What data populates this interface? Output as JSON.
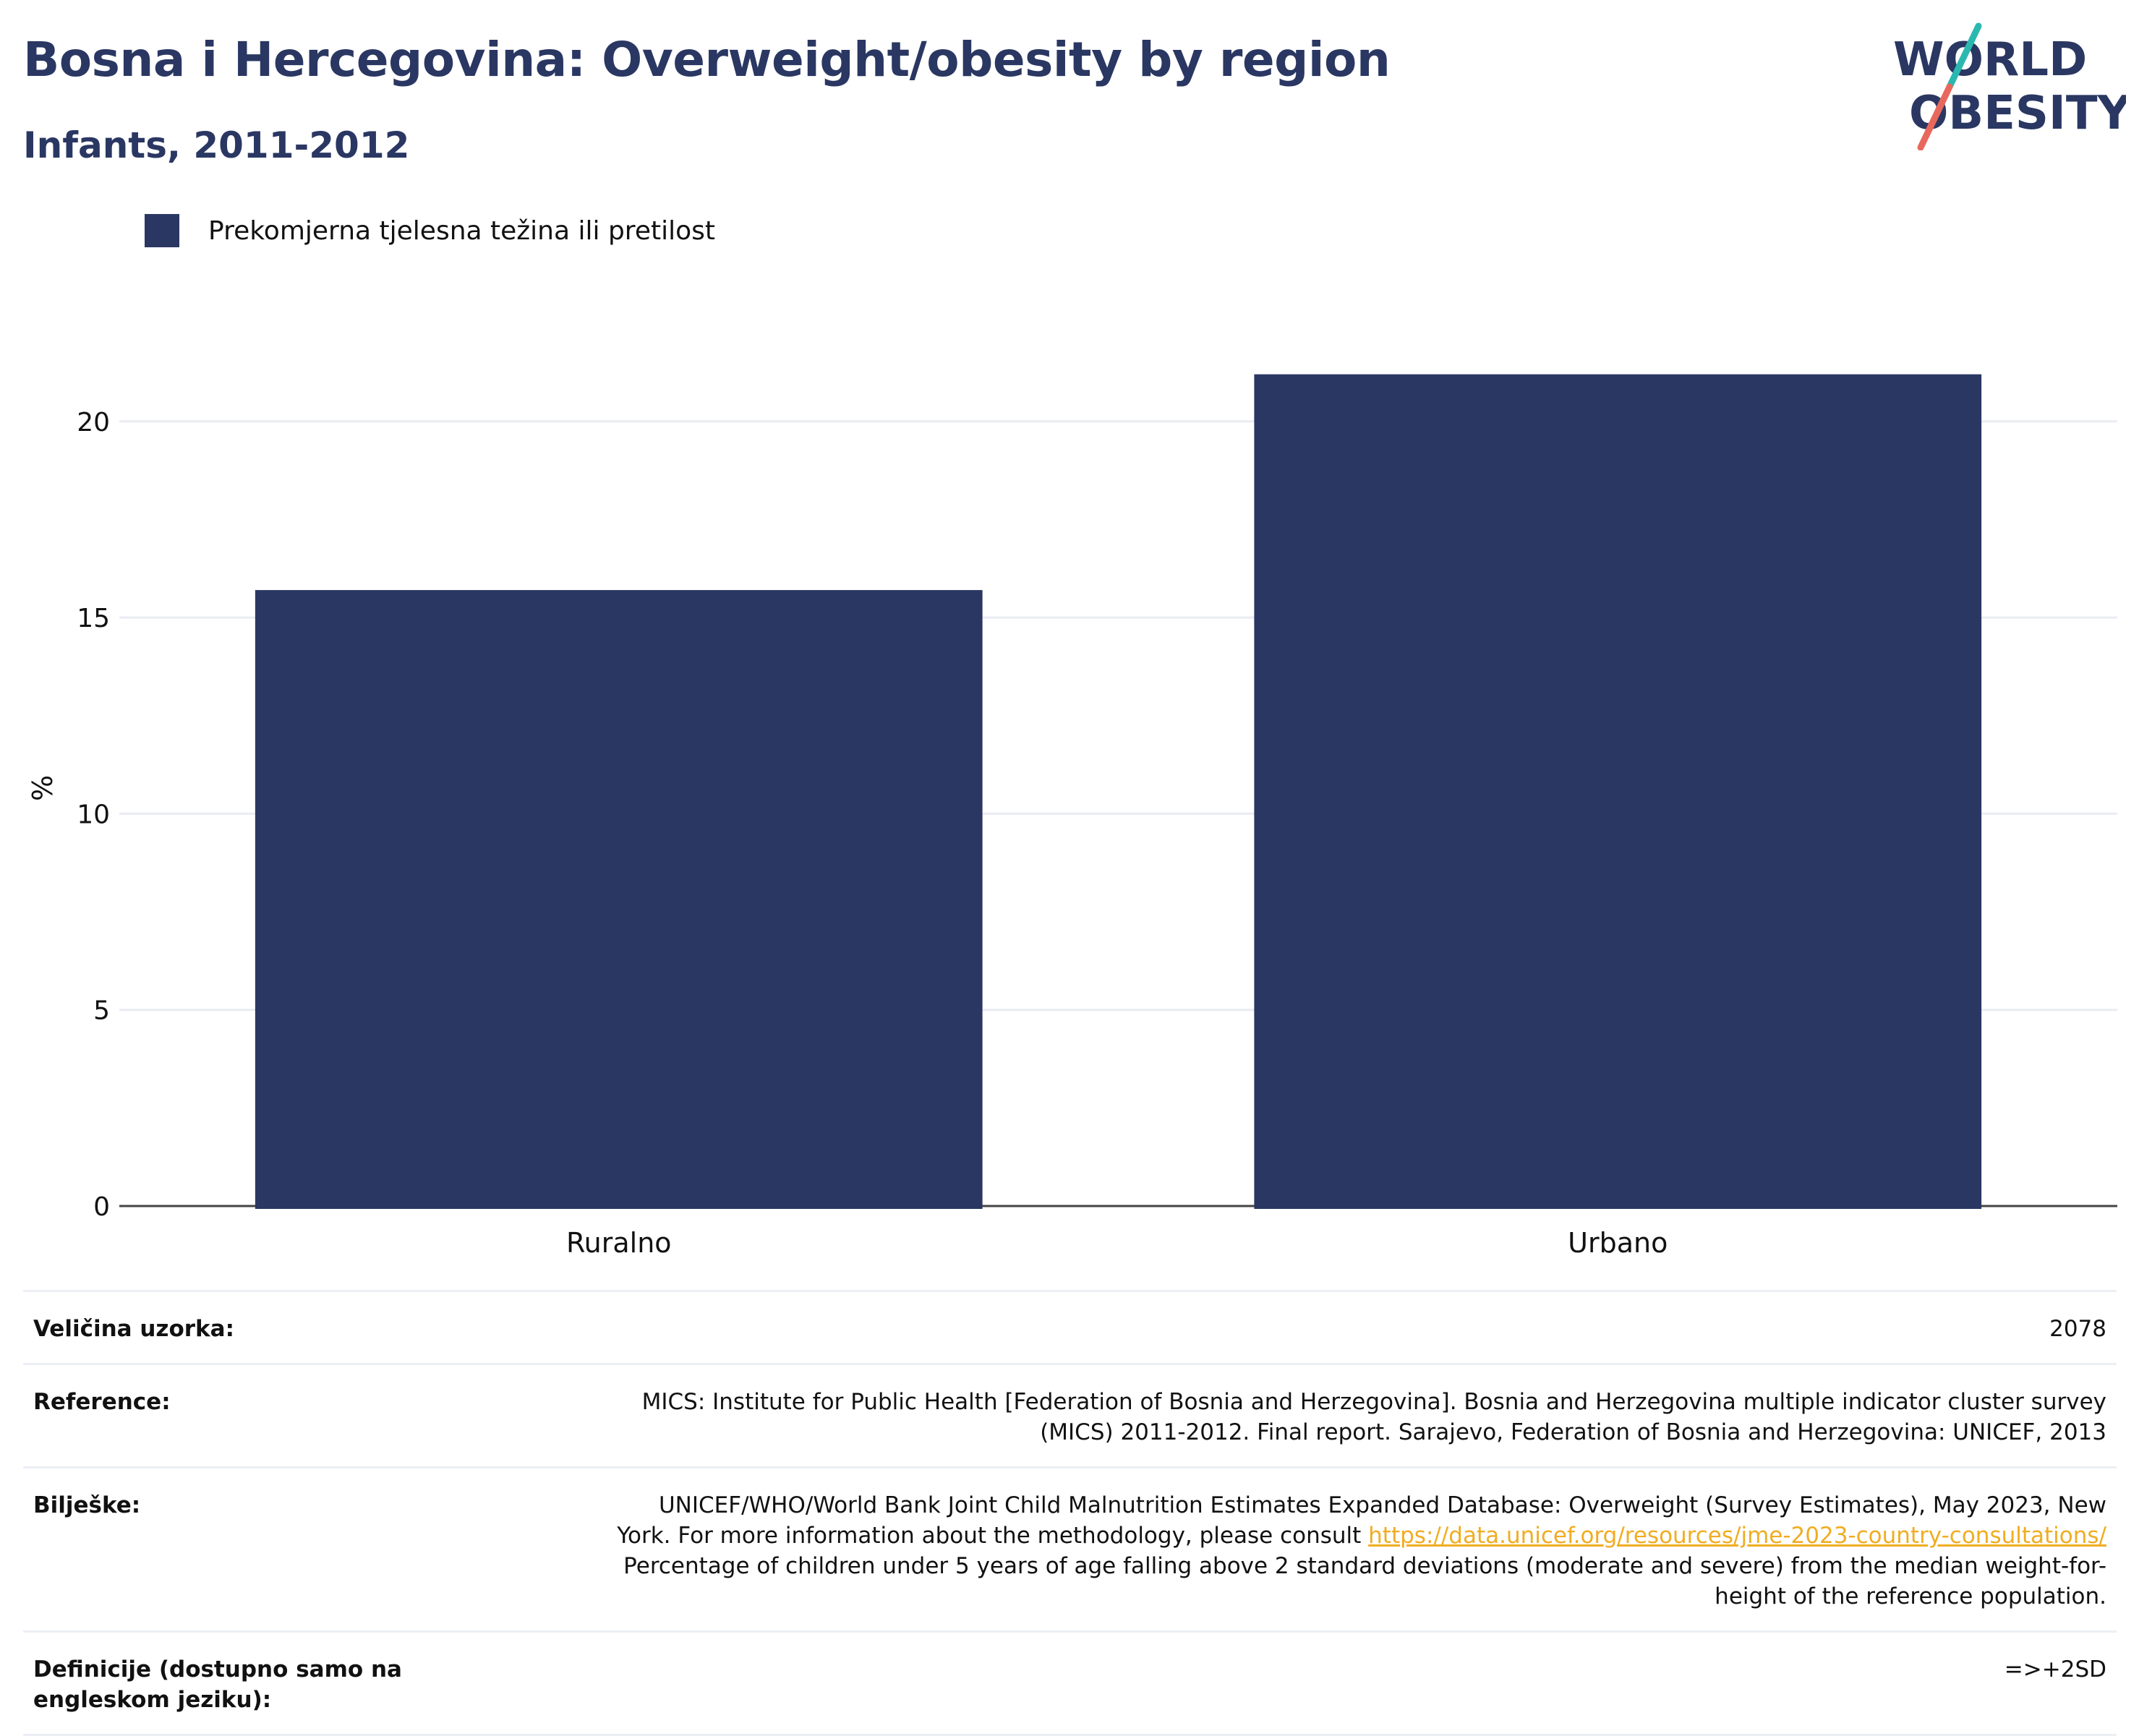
{
  "header": {
    "title": "Bosna i Hercegovina: Overweight/obesity by region",
    "subtitle": "Infants, 2011-2012",
    "logo_line1": "WORLD",
    "logo_line2": "OBESITY"
  },
  "colors": {
    "bar": "#2a3762",
    "title": "#2a3762",
    "link": "#f0ad22",
    "logo_slash_top": "#2bb8b0",
    "logo_slash_bottom": "#e8685d"
  },
  "chart_data": {
    "type": "bar",
    "categories": [
      "Ruralno",
      "Urbano"
    ],
    "series": [
      {
        "name": "Prekomjerna tjelesna težina ili pretilost",
        "values": [
          15.7,
          21.2
        ]
      }
    ],
    "ylabel": "%",
    "xlabel": "",
    "ylim": [
      0,
      23
    ],
    "yticks": [
      0,
      5,
      10,
      15,
      20
    ],
    "grid": true,
    "legend": "top-left"
  },
  "info": {
    "sample_label": "Veličina uzorka:",
    "sample_value": "2078",
    "reference_label": "Reference:",
    "reference_line1": "MICS: Institute for Public Health [Federation of Bosnia and Herzegovina]. Bosnia and Herzegovina multiple indicator cluster survey",
    "reference_line2": "(MICS) 2011-2012. Final report. Sarajevo, Federation of Bosnia and Herzegovina: UNICEF, 2013",
    "notes_label": "Bilješke:",
    "notes_line1": "UNICEF/WHO/World Bank Joint Child Malnutrition Estimates Expanded Database: Overweight (Survey Estimates), May 2023, New",
    "notes_line2_prefix": "York. For more information about the methodology, please consult ",
    "notes_link": "https://data.unicef.org/resources/jme-2023-country-consultations/",
    "notes_line3": "Percentage of children under 5 years of age falling above 2 standard deviations (moderate and severe) from the median weight-for-",
    "notes_line4": "height of the reference population.",
    "definitions_label": "Definicije (dostupno samo na engleskom jeziku):",
    "definitions_value": "=>+2SD"
  }
}
